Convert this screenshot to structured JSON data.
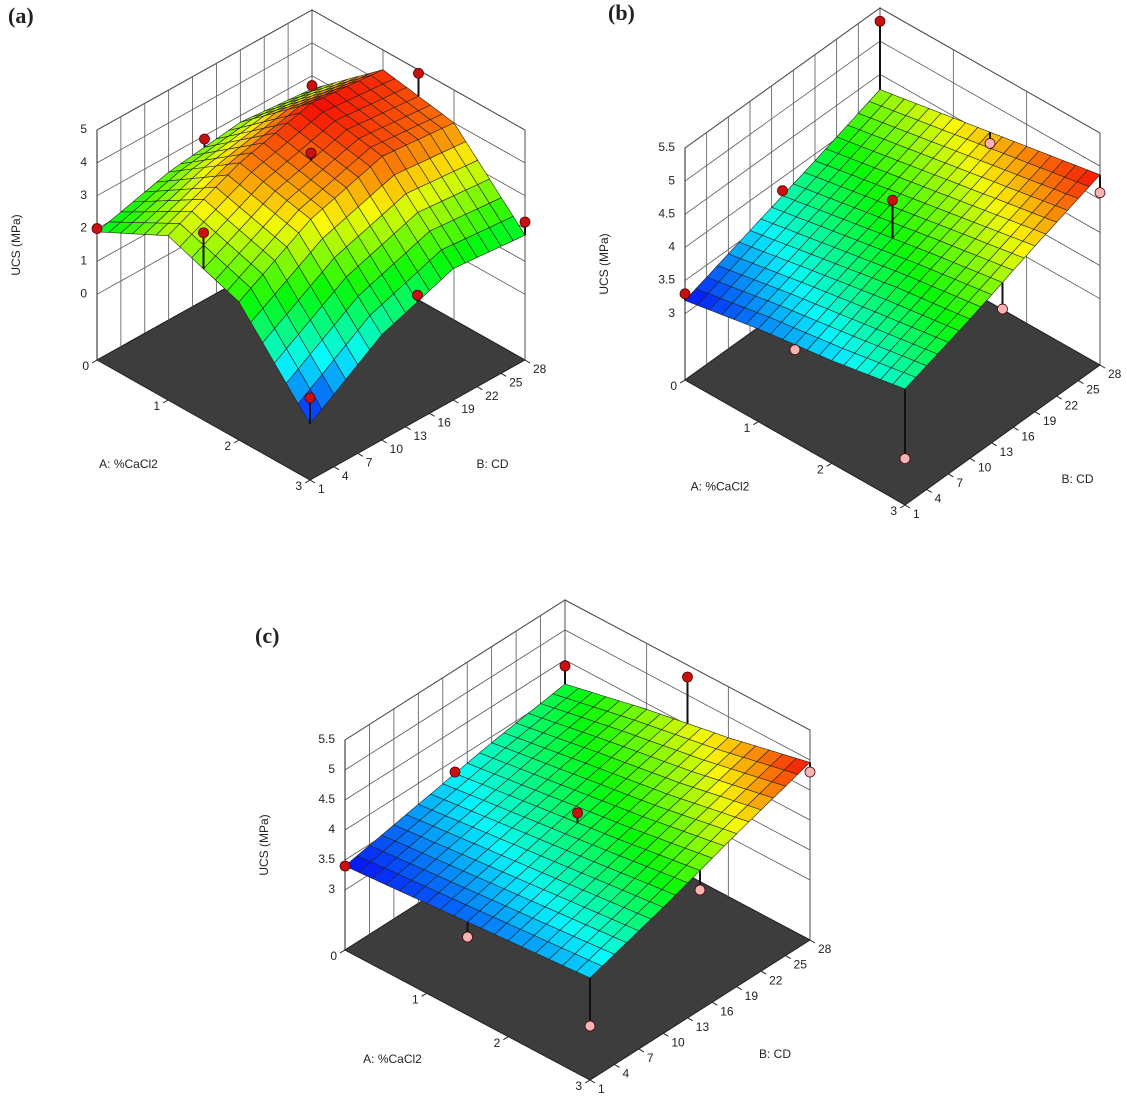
{
  "chart_data": [
    {
      "type": "surface",
      "panel_label": "(a)",
      "x_label": "A: %CaCl2",
      "y_label": "B: CD",
      "z_label": "UCS (MPa)",
      "xlim": [
        0,
        3
      ],
      "xticks": [
        0,
        1,
        2,
        3
      ],
      "ylim": [
        1,
        28
      ],
      "yticks": [
        1,
        4,
        7,
        10,
        13,
        16,
        19,
        22,
        25,
        28
      ],
      "zlim": [
        -2,
        5
      ],
      "zticks": [
        0,
        1,
        2,
        3,
        4,
        5
      ],
      "surface": {
        "x": [
          0,
          1,
          2,
          3
        ],
        "y": [
          1,
          10,
          19,
          28
        ],
        "z": [
          [
            1.9,
            2.5,
            2.8,
            2.6
          ],
          [
            3.0,
            4.0,
            4.6,
            4.4
          ],
          [
            2.2,
            3.5,
            4.2,
            4.0
          ],
          [
            -0.3,
            1.2,
            2.0,
            1.8
          ]
        ]
      },
      "points": {
        "x": [
          0,
          0,
          0,
          1.5,
          1.5,
          1.5,
          3,
          3,
          3
        ],
        "y": [
          1,
          14.5,
          28,
          1,
          14.5,
          28,
          1,
          14.5,
          28
        ],
        "z": [
          2.0,
          2.9,
          2.7,
          3.7,
          4.3,
          4.9,
          0.5,
          1.8,
          2.2
        ]
      }
    },
    {
      "type": "surface",
      "panel_label": "(b)",
      "x_label": "A: %CaCl2",
      "y_label": "B: CD",
      "z_label": "UCS (MPa)",
      "xlim": [
        0,
        3
      ],
      "xticks": [
        0,
        1,
        2,
        3
      ],
      "ylim": [
        1,
        28
      ],
      "yticks": [
        1,
        4,
        7,
        10,
        13,
        16,
        19,
        22,
        25,
        28
      ],
      "zlim": [
        2,
        5.5
      ],
      "zticks": [
        3,
        3.5,
        4,
        4.5,
        5,
        5.5
      ],
      "surface": {
        "x": [
          0,
          1,
          2,
          3
        ],
        "y": [
          1,
          10,
          19,
          28
        ],
        "z": [
          [
            3.2,
            3.55,
            3.9,
            4.27
          ],
          [
            3.4,
            3.75,
            4.1,
            4.47
          ],
          [
            3.55,
            3.95,
            4.3,
            4.67
          ],
          [
            3.75,
            4.1,
            4.5,
            4.87
          ]
        ]
      },
      "points": {
        "x": [
          0,
          0,
          0,
          1.5,
          1.5,
          1.5,
          3,
          3,
          3
        ],
        "y": [
          1,
          14.5,
          28,
          1,
          14.5,
          28,
          1,
          14.5,
          28
        ],
        "z": [
          3.3,
          3.8,
          5.3,
          3.4,
          4.6,
          4.4,
          2.7,
          3.9,
          4.6
        ]
      }
    },
    {
      "type": "surface",
      "panel_label": "(c)",
      "x_label": "A: %CaCl2",
      "y_label": "B: CD",
      "z_label": "UCS (MPa)",
      "xlim": [
        0,
        3
      ],
      "xticks": [
        0,
        1,
        2,
        3
      ],
      "ylim": [
        1,
        28
      ],
      "yticks": [
        1,
        4,
        7,
        10,
        13,
        16,
        19,
        22,
        25,
        28
      ],
      "zlim": [
        2,
        5.5
      ],
      "zticks": [
        3,
        3.5,
        4,
        4.5,
        5,
        5.5
      ],
      "surface": {
        "x": [
          0,
          1,
          2,
          3
        ],
        "y": [
          1,
          10,
          19,
          28
        ],
        "z": [
          [
            3.4,
            3.65,
            3.9,
            4.1
          ],
          [
            3.5,
            3.8,
            4.1,
            4.4
          ],
          [
            3.6,
            3.95,
            4.3,
            4.65
          ],
          [
            3.7,
            4.1,
            4.55,
            4.96
          ]
        ]
      },
      "points": {
        "x": [
          0,
          0,
          0,
          1.5,
          1.5,
          1.5,
          3,
          3,
          3
        ],
        "y": [
          1,
          14.5,
          28,
          1,
          14.5,
          28,
          1,
          14.5,
          28
        ],
        "z": [
          3.4,
          3.8,
          4.4,
          3.3,
          4.2,
          5.3,
          2.9,
          4.0,
          4.8
        ]
      }
    }
  ]
}
